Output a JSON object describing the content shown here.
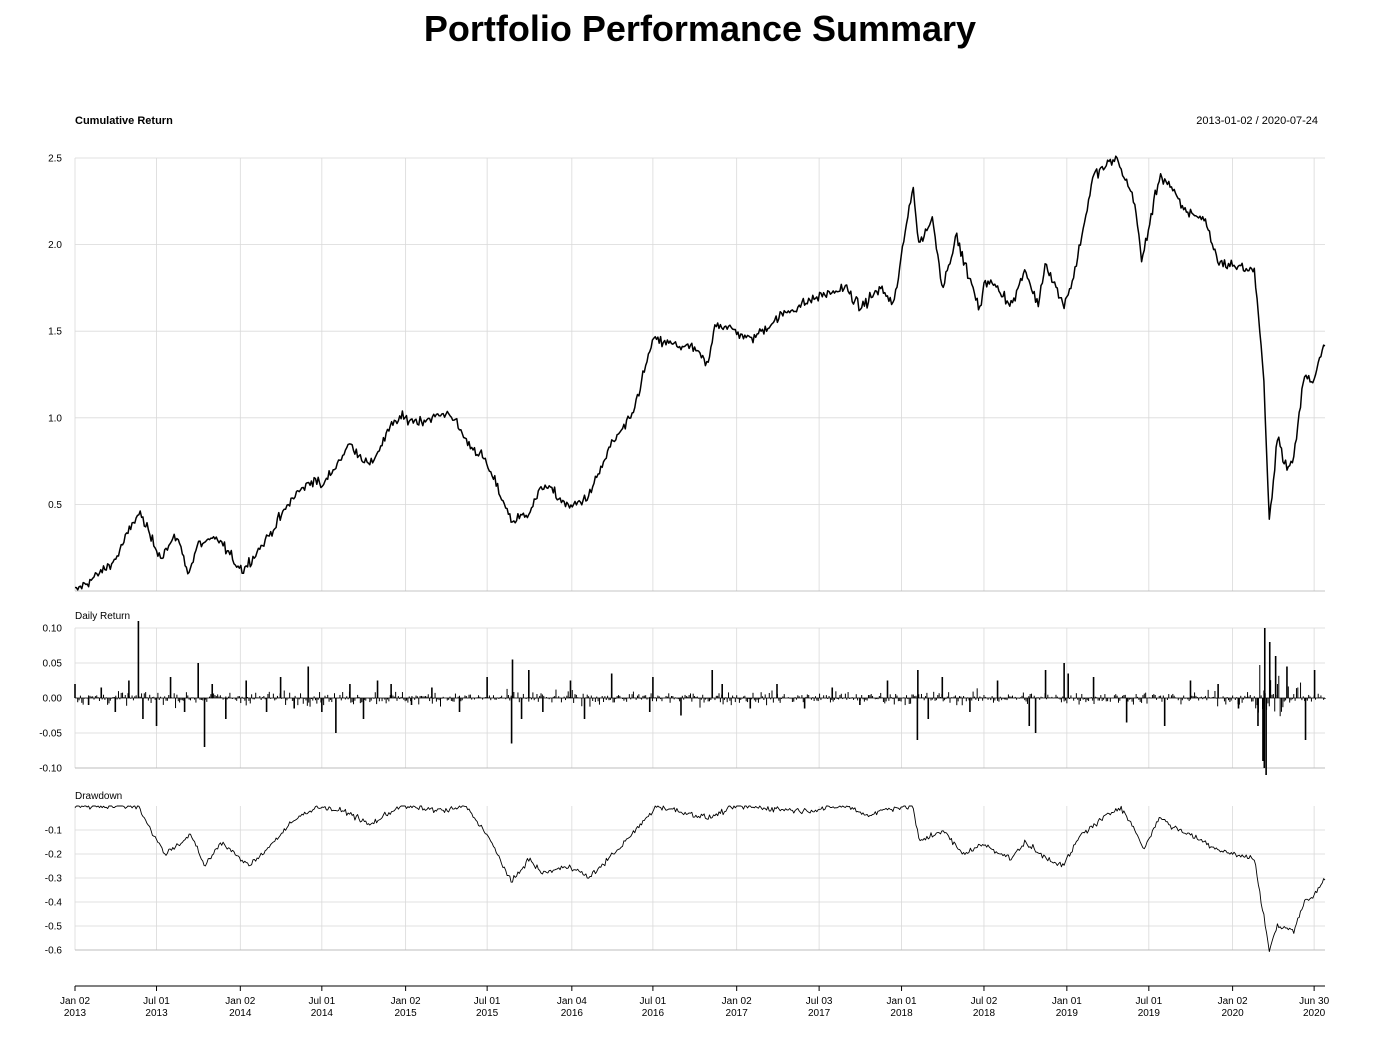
{
  "title": "Portfolio Performance Summary",
  "date_range": "2013-01-02 / 2020-07-24",
  "colors": {
    "line": "#000000",
    "grid": "#d9d9d9",
    "background": "#ffffff"
  },
  "chart_data": [
    {
      "type": "line",
      "title": "Cumulative Return",
      "ylim": [
        0,
        2.5
      ],
      "yticks": [
        0.5,
        1.0,
        1.5,
        2.0,
        2.5
      ],
      "ytick_labels": [
        "0.5",
        "1.0",
        "1.5",
        "2.0",
        "2.5"
      ],
      "grid": true,
      "series": [
        {
          "x": [
            "2013-01-02",
            "2013-02-15",
            "2013-04-01",
            "2013-05-15",
            "2013-05-25",
            "2013-06-20",
            "2013-07-10",
            "2013-08-15",
            "2013-09-10",
            "2013-10-01",
            "2013-11-15",
            "2013-12-20",
            "2014-01-08",
            "2014-03-01",
            "2014-05-01",
            "2014-06-15",
            "2014-07-01",
            "2014-09-01",
            "2014-10-15",
            "2014-12-01",
            "2014-12-20",
            "2015-02-01",
            "2015-04-10",
            "2015-05-20",
            "2015-06-20",
            "2015-07-20",
            "2015-08-25",
            "2015-09-29",
            "2015-11-05",
            "2015-12-01",
            "2015-12-31",
            "2016-02-11",
            "2016-04-01",
            "2016-05-15",
            "2016-07-01",
            "2016-08-20",
            "2016-09-30",
            "2016-10-31",
            "2016-11-15",
            "2016-12-31",
            "2017-02-01",
            "2017-04-15",
            "2017-07-01",
            "2017-09-01",
            "2017-10-01",
            "2017-11-15",
            "2017-12-15",
            "2018-01-26",
            "2018-02-08",
            "2018-03-10",
            "2018-04-02",
            "2018-05-01",
            "2018-06-25",
            "2018-07-01",
            "2018-08-01",
            "2018-09-01",
            "2018-10-01",
            "2018-10-29",
            "2018-11-15",
            "2018-12-24",
            "2019-01-15",
            "2019-03-01",
            "2019-04-20",
            "2019-05-31",
            "2019-06-15",
            "2019-07-25",
            "2019-08-15",
            "2019-09-15",
            "2019-11-01",
            "2019-12-01",
            "2020-01-02",
            "2020-02-19",
            "2020-02-28",
            "2020-03-10",
            "2020-03-23",
            "2020-04-10",
            "2020-04-30",
            "2020-05-15",
            "2020-06-08",
            "2020-06-26",
            "2020-07-24"
          ],
          "y": [
            0.0,
            0.08,
            0.18,
            0.42,
            0.45,
            0.3,
            0.2,
            0.32,
            0.1,
            0.27,
            0.3,
            0.17,
            0.12,
            0.3,
            0.55,
            0.65,
            0.6,
            0.85,
            0.72,
            0.95,
            1.0,
            0.98,
            1.03,
            0.85,
            0.78,
            0.62,
            0.4,
            0.45,
            0.62,
            0.55,
            0.48,
            0.55,
            0.85,
            1.0,
            1.45,
            1.42,
            1.4,
            1.3,
            1.55,
            1.5,
            1.45,
            1.6,
            1.7,
            1.75,
            1.63,
            1.75,
            1.65,
            2.35,
            2.0,
            2.15,
            1.75,
            2.05,
            1.6,
            1.8,
            1.75,
            1.65,
            1.85,
            1.65,
            1.9,
            1.65,
            1.8,
            2.4,
            2.5,
            2.25,
            1.9,
            2.4,
            2.35,
            2.2,
            2.15,
            1.9,
            1.88,
            1.85,
            1.6,
            1.25,
            0.4,
            0.9,
            0.7,
            0.75,
            1.25,
            1.2,
            1.45
          ]
        }
      ]
    },
    {
      "type": "bar",
      "title": "Daily Return",
      "ylim": [
        -0.1,
        0.1
      ],
      "yticks": [
        0.1,
        0.05,
        0.0,
        -0.05,
        -0.1
      ],
      "ytick_labels": [
        "0.10",
        "0.05",
        "0.00",
        "-0.05",
        "-0.10"
      ],
      "grid": true,
      "series": [
        {
          "x": [
            "2013-01-02",
            "2013-02-01",
            "2013-03-01",
            "2013-04-01",
            "2013-05-01",
            "2013-05-22",
            "2013-06-01",
            "2013-07-01",
            "2013-08-01",
            "2013-09-01",
            "2013-10-01",
            "2013-10-15",
            "2013-11-01",
            "2013-12-01",
            "2014-01-15",
            "2014-03-01",
            "2014-04-01",
            "2014-05-01",
            "2014-06-01",
            "2014-07-01",
            "2014-08-01",
            "2014-09-01",
            "2014-10-01",
            "2014-11-01",
            "2014-12-01",
            "2015-01-15",
            "2015-03-01",
            "2015-05-01",
            "2015-07-01",
            "2015-08-24",
            "2015-08-26",
            "2015-09-15",
            "2015-10-01",
            "2015-11-01",
            "2016-01-01",
            "2016-02-01",
            "2016-04-01",
            "2016-06-24",
            "2016-07-01",
            "2016-09-01",
            "2016-11-09",
            "2016-12-01",
            "2017-02-01",
            "2017-04-01",
            "2017-06-01",
            "2017-08-01",
            "2017-10-01",
            "2017-12-01",
            "2018-02-05",
            "2018-02-06",
            "2018-03-01",
            "2018-04-01",
            "2018-06-01",
            "2018-08-01",
            "2018-10-10",
            "2018-10-24",
            "2018-11-15",
            "2018-12-26",
            "2019-01-04",
            "2019-03-01",
            "2019-05-13",
            "2019-08-05",
            "2019-10-01",
            "2019-12-01",
            "2020-01-15",
            "2020-02-27",
            "2020-03-09",
            "2020-03-12",
            "2020-03-13",
            "2020-03-16",
            "2020-03-24",
            "2020-04-06",
            "2020-05-01",
            "2020-06-11",
            "2020-07-01"
          ],
          "y": [
            0.02,
            -0.01,
            0.015,
            -0.02,
            0.025,
            0.11,
            -0.03,
            -0.04,
            0.03,
            -0.02,
            0.05,
            -0.07,
            0.02,
            -0.03,
            0.025,
            -0.02,
            0.03,
            -0.015,
            0.045,
            -0.02,
            -0.05,
            0.02,
            -0.03,
            0.025,
            0.02,
            -0.01,
            0.015,
            -0.02,
            0.03,
            -0.065,
            0.055,
            -0.03,
            0.04,
            -0.02,
            0.025,
            -0.03,
            0.035,
            -0.02,
            0.03,
            -0.025,
            0.04,
            0.02,
            -0.015,
            0.02,
            -0.015,
            0.015,
            -0.01,
            0.025,
            -0.06,
            0.04,
            -0.03,
            0.03,
            -0.02,
            0.025,
            -0.04,
            -0.05,
            0.04,
            0.05,
            0.035,
            0.03,
            -0.035,
            -0.04,
            0.025,
            0.02,
            -0.015,
            -0.04,
            -0.09,
            -0.1,
            0.1,
            -0.11,
            0.08,
            0.06,
            0.045,
            -0.06,
            0.04
          ]
        }
      ]
    },
    {
      "type": "line",
      "title": "Drawdown",
      "ylim": [
        -0.6,
        0
      ],
      "yticks": [
        -0.1,
        -0.2,
        -0.3,
        -0.4,
        -0.5,
        -0.6
      ],
      "ytick_labels": [
        "-0.1",
        "-0.2",
        "-0.3",
        "-0.4",
        "-0.5",
        "-0.6"
      ],
      "grid": true,
      "series": [
        {
          "x": [
            "2013-01-02",
            "2013-05-22",
            "2013-06-24",
            "2013-07-20",
            "2013-09-15",
            "2013-10-15",
            "2013-11-20",
            "2014-01-20",
            "2014-03-01",
            "2014-05-01",
            "2014-06-20",
            "2014-09-01",
            "2014-10-15",
            "2014-12-20",
            "2015-04-01",
            "2015-05-15",
            "2015-07-01",
            "2015-08-25",
            "2015-09-30",
            "2015-10-30",
            "2016-01-01",
            "2016-02-11",
            "2016-05-01",
            "2016-07-10",
            "2016-11-01",
            "2017-01-01",
            "2017-06-01",
            "2017-09-01",
            "2017-10-20",
            "2017-12-01",
            "2018-01-26",
            "2018-02-09",
            "2018-04-02",
            "2018-05-15",
            "2018-07-01",
            "2018-09-01",
            "2018-10-01",
            "2018-11-01",
            "2018-12-24",
            "2019-02-01",
            "2019-04-29",
            "2019-05-31",
            "2019-06-20",
            "2019-07-26",
            "2019-08-15",
            "2019-10-01",
            "2019-12-01",
            "2020-01-02",
            "2020-02-19",
            "2020-03-23",
            "2020-04-10",
            "2020-05-15",
            "2020-06-08",
            "2020-06-26",
            "2020-07-24"
          ],
          "y": [
            0.0,
            0.0,
            -0.12,
            -0.2,
            -0.12,
            -0.25,
            -0.15,
            -0.25,
            -0.18,
            -0.06,
            0.0,
            -0.03,
            -0.08,
            0.0,
            -0.02,
            0.0,
            -0.12,
            -0.32,
            -0.22,
            -0.28,
            -0.25,
            -0.3,
            -0.15,
            0.0,
            -0.05,
            0.0,
            -0.02,
            0.0,
            -0.04,
            -0.01,
            0.0,
            -0.15,
            -0.1,
            -0.2,
            -0.16,
            -0.22,
            -0.15,
            -0.2,
            -0.25,
            -0.12,
            0.0,
            -0.1,
            -0.18,
            -0.04,
            -0.08,
            -0.12,
            -0.18,
            -0.2,
            -0.22,
            -0.6,
            -0.5,
            -0.52,
            -0.4,
            -0.38,
            -0.3
          ]
        }
      ]
    }
  ],
  "x_axis": {
    "ticks": [
      "2013-01-02",
      "2013-07-01",
      "2014-01-02",
      "2014-07-01",
      "2015-01-02",
      "2015-07-01",
      "2016-01-04",
      "2016-07-01",
      "2017-01-02",
      "2017-07-03",
      "2018-01-01",
      "2018-07-02",
      "2019-01-01",
      "2019-07-01",
      "2020-01-02",
      "2020-06-30"
    ],
    "labels": [
      {
        "line1": "Jan 02",
        "line2": "2013"
      },
      {
        "line1": "Jul 01",
        "line2": "2013"
      },
      {
        "line1": "Jan 02",
        "line2": "2014"
      },
      {
        "line1": "Jul 01",
        "line2": "2014"
      },
      {
        "line1": "Jan 02",
        "line2": "2015"
      },
      {
        "line1": "Jul 01",
        "line2": "2015"
      },
      {
        "line1": "Jan 04",
        "line2": "2016"
      },
      {
        "line1": "Jul 01",
        "line2": "2016"
      },
      {
        "line1": "Jan 02",
        "line2": "2017"
      },
      {
        "line1": "Jul 03",
        "line2": "2017"
      },
      {
        "line1": "Jan 01",
        "line2": "2018"
      },
      {
        "line1": "Jul 02",
        "line2": "2018"
      },
      {
        "line1": "Jan 01",
        "line2": "2019"
      },
      {
        "line1": "Jul 01",
        "line2": "2019"
      },
      {
        "line1": "Jan 02",
        "line2": "2020"
      },
      {
        "line1": "Jun 30",
        "line2": "2020"
      }
    ],
    "range": [
      "2013-01-02",
      "2020-07-24"
    ]
  }
}
